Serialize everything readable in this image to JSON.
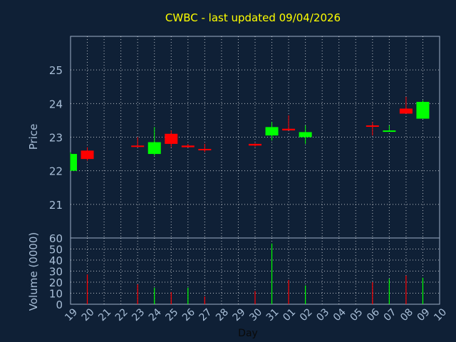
{
  "title": "CWBC - last updated 09/04/2026",
  "chart_data": [
    {
      "type": "candlestick",
      "ylabel": "Price",
      "ylim": [
        20,
        26
      ],
      "yticks": [
        21,
        22,
        23,
        24,
        25
      ],
      "grid": true,
      "colors": {
        "up": "#00ff00",
        "down": "#ff0000",
        "grid": "#ffffff",
        "axis": "#9fb0c8",
        "text": "#a9bfd8",
        "title": "#ffff00"
      },
      "candles": [
        {
          "day": "19",
          "open": 22.0,
          "high": 22.55,
          "low": 22.0,
          "close": 22.5
        },
        {
          "day": "20",
          "open": 22.6,
          "high": 22.7,
          "low": 22.3,
          "close": 22.35
        },
        {
          "day": "23",
          "open": 22.75,
          "high": 23.0,
          "low": 22.7,
          "close": 22.72
        },
        {
          "day": "24",
          "open": 22.5,
          "high": 23.3,
          "low": 22.45,
          "close": 22.85
        },
        {
          "day": "25",
          "open": 23.1,
          "high": 23.2,
          "low": 22.7,
          "close": 22.8
        },
        {
          "day": "26",
          "open": 22.75,
          "high": 22.8,
          "low": 22.7,
          "close": 22.7
        },
        {
          "day": "27",
          "open": 22.65,
          "high": 22.8,
          "low": 22.55,
          "close": 22.62
        },
        {
          "day": "30",
          "open": 22.8,
          "high": 22.82,
          "low": 22.72,
          "close": 22.75
        },
        {
          "day": "31",
          "open": 23.05,
          "high": 23.45,
          "low": 22.9,
          "close": 23.3
        },
        {
          "day": "01",
          "open": 23.25,
          "high": 23.65,
          "low": 23.2,
          "close": 23.2
        },
        {
          "day": "02",
          "open": 23.0,
          "high": 23.35,
          "low": 22.8,
          "close": 23.15
        },
        {
          "day": "06",
          "open": 23.35,
          "high": 23.45,
          "low": 23.05,
          "close": 23.32
        },
        {
          "day": "07",
          "open": 23.2,
          "high": 23.35,
          "low": 23.2,
          "close": 23.2
        },
        {
          "day": "08",
          "open": 23.85,
          "high": 24.2,
          "low": 23.7,
          "close": 23.7
        },
        {
          "day": "09",
          "open": 23.55,
          "high": 24.1,
          "low": 23.55,
          "close": 24.05
        }
      ]
    },
    {
      "type": "bar",
      "ylabel": "Volume (0000)",
      "xlabel": "Day",
      "ylim": [
        0,
        60
      ],
      "yticks": [
        0,
        10,
        20,
        30,
        40,
        50,
        60
      ],
      "grid": true,
      "categories": [
        "19",
        "20",
        "21",
        "22",
        "23",
        "24",
        "25",
        "26",
        "27",
        "28",
        "29",
        "30",
        "31",
        "01",
        "02",
        "03",
        "04",
        "05",
        "06",
        "07",
        "08",
        "09",
        "10"
      ],
      "volumes": [
        {
          "day": "20",
          "value": 27,
          "dir": "down"
        },
        {
          "day": "23",
          "value": 18,
          "dir": "down"
        },
        {
          "day": "24",
          "value": 15,
          "dir": "up"
        },
        {
          "day": "25",
          "value": 11,
          "dir": "down"
        },
        {
          "day": "26",
          "value": 15,
          "dir": "up"
        },
        {
          "day": "27",
          "value": 7,
          "dir": "down"
        },
        {
          "day": "30",
          "value": 12,
          "dir": "down"
        },
        {
          "day": "31",
          "value": 55,
          "dir": "up"
        },
        {
          "day": "01",
          "value": 22,
          "dir": "down"
        },
        {
          "day": "02",
          "value": 17,
          "dir": "up"
        },
        {
          "day": "06",
          "value": 20,
          "dir": "down"
        },
        {
          "day": "07",
          "value": 23,
          "dir": "up"
        },
        {
          "day": "08",
          "value": 26,
          "dir": "down"
        },
        {
          "day": "09",
          "value": 24,
          "dir": "up"
        }
      ]
    }
  ]
}
